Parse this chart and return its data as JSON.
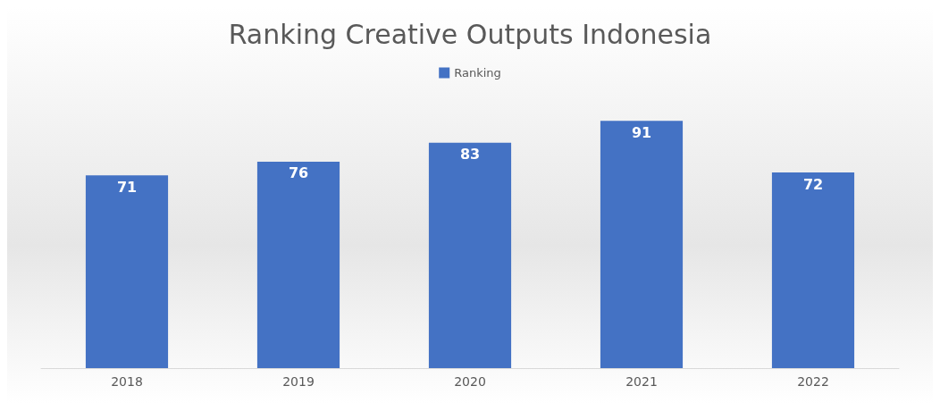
{
  "chart_data": {
    "type": "bar",
    "title": "Ranking Creative Outputs Indonesia",
    "categories": [
      "2018",
      "2019",
      "2020",
      "2021",
      "2022"
    ],
    "series": [
      {
        "name": "Ranking",
        "color": "#4472c4",
        "values": [
          71,
          76,
          83,
          91,
          72
        ]
      }
    ],
    "data_labels": true,
    "legend": "top",
    "grid": false
  }
}
